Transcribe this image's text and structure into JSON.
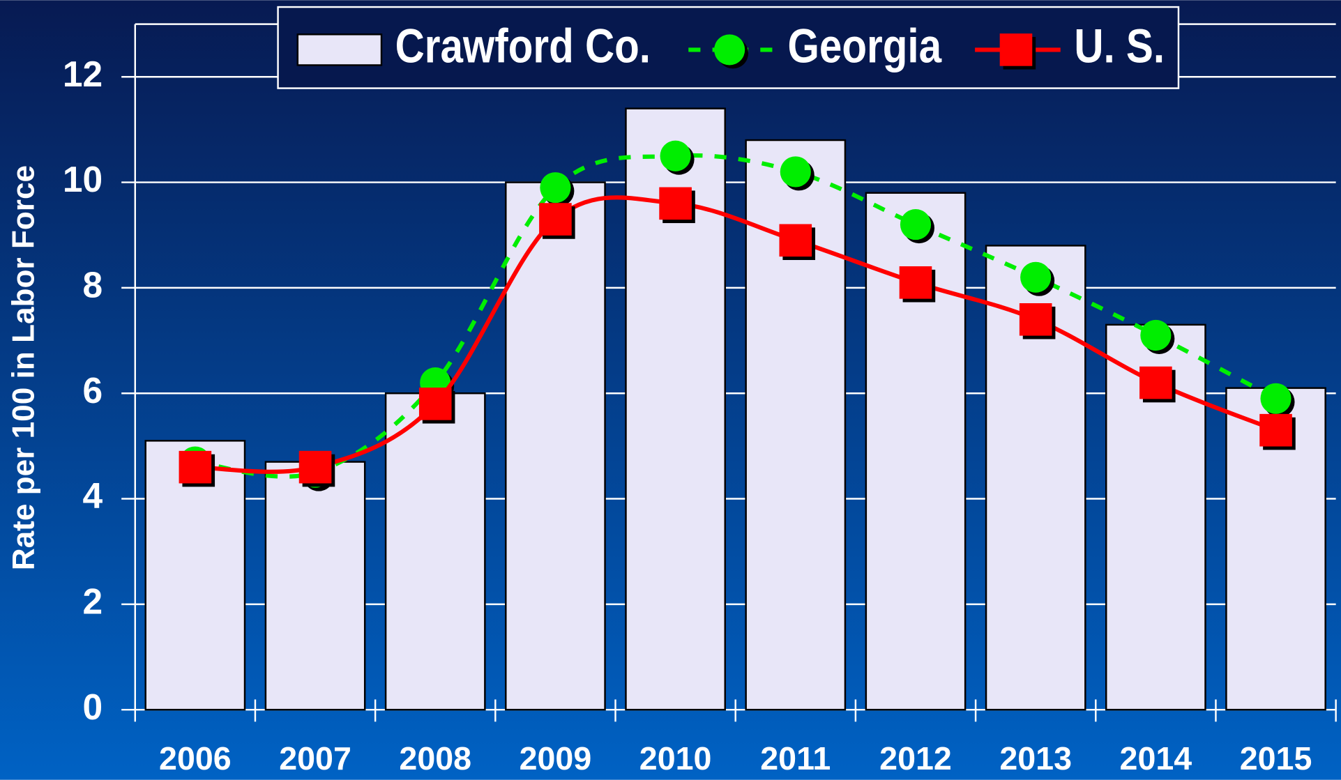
{
  "chart_data": {
    "type": "bar",
    "y_axis_label": "Rate per 100 in Labor Force",
    "categories": [
      "2006",
      "2007",
      "2008",
      "2009",
      "2010",
      "2011",
      "2012",
      "2013",
      "2014",
      "2015"
    ],
    "series": [
      {
        "name": "Crawford Co.",
        "type": "bar",
        "color": "#e8e6f8",
        "values": [
          5.1,
          4.7,
          6.0,
          10.0,
          11.4,
          10.8,
          9.8,
          8.8,
          7.3,
          6.1
        ]
      },
      {
        "name": "Georgia",
        "type": "line",
        "color": "#00ee00",
        "marker": "circle",
        "dashed": true,
        "values": [
          4.7,
          4.5,
          6.2,
          9.9,
          10.5,
          10.2,
          9.2,
          8.2,
          7.1,
          5.9
        ]
      },
      {
        "name": "U. S.",
        "type": "line",
        "color": "#ff0000",
        "marker": "square",
        "dashed": false,
        "values": [
          4.6,
          4.6,
          5.8,
          9.3,
          9.6,
          8.9,
          8.1,
          7.4,
          6.2,
          5.3
        ]
      }
    ],
    "ylim": [
      0,
      13
    ],
    "yticks": [
      0,
      2,
      4,
      6,
      8,
      10,
      12
    ],
    "grid": true,
    "legend": "top"
  }
}
